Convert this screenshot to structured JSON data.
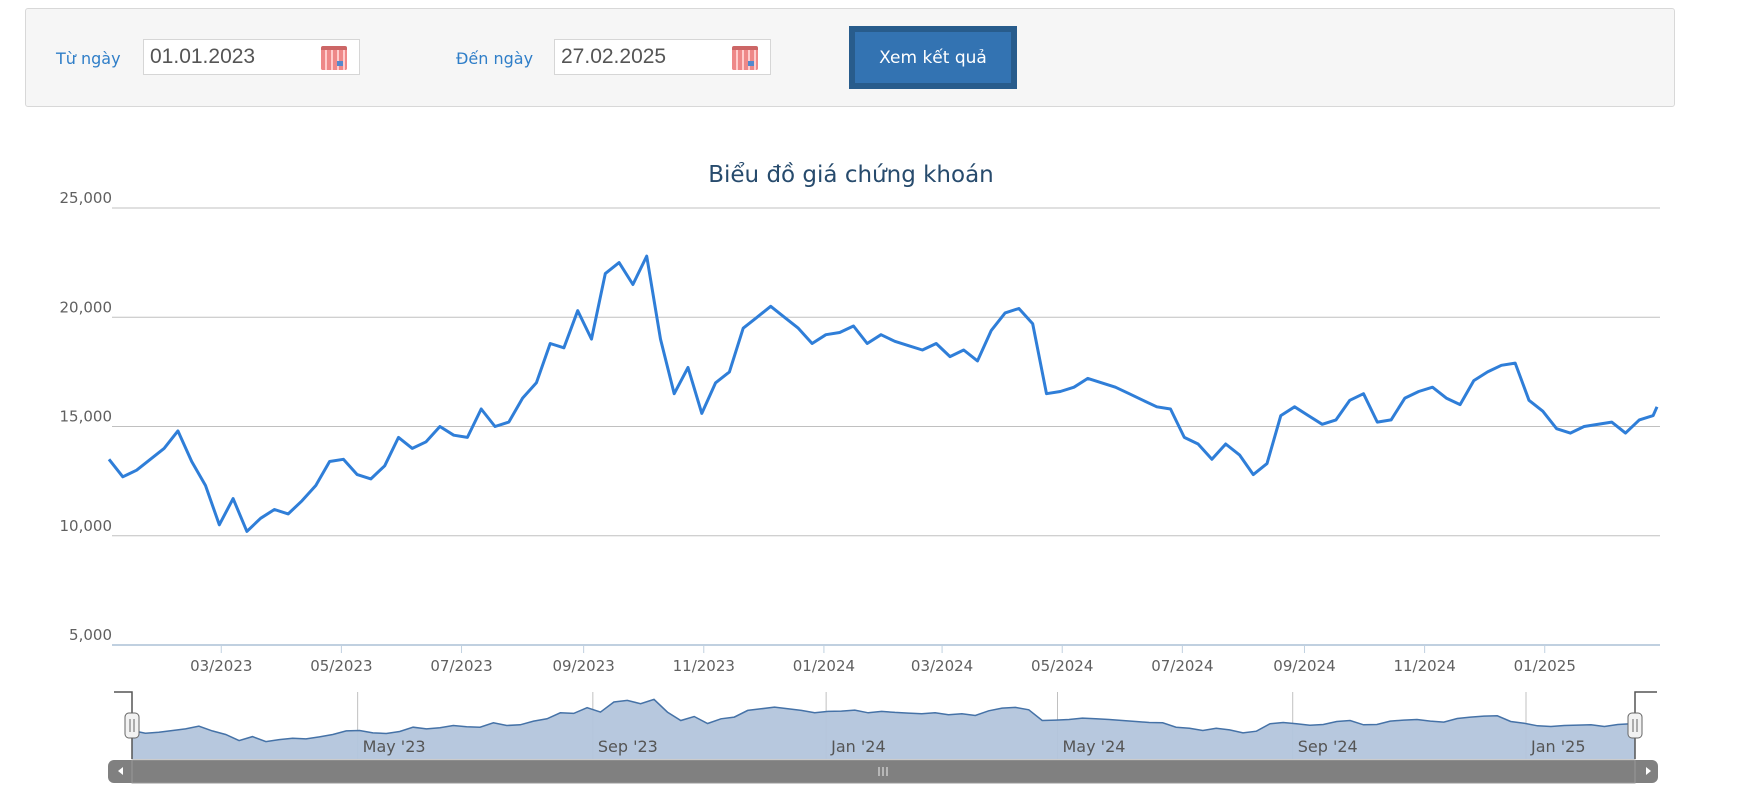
{
  "filter": {
    "from_label": "Từ ngày",
    "from_value": "01.01.2023",
    "to_label": "Đến ngày",
    "to_value": "27.02.2025",
    "submit_label": "Xem kết quả",
    "calendar_icon": "calendar-icon"
  },
  "colors": {
    "line": "#2f7ed8",
    "navigator_fill": "#b3c5dc",
    "navigator_line": "#4572a7",
    "title": "#274b6d",
    "button": "#3373b2"
  },
  "chart_data": {
    "type": "line",
    "title": "Biểu đồ giá chứng khoán",
    "ylim": [
      5000,
      25000
    ],
    "y_ticks": [
      "5,000",
      "10,000",
      "15,000",
      "20,000",
      "25,000"
    ],
    "y_tick_values": [
      5000,
      10000,
      15000,
      20000,
      25000
    ],
    "x_ticks": [
      {
        "date": "2023-03-01",
        "label": "03/2023"
      },
      {
        "date": "2023-05-01",
        "label": "05/2023"
      },
      {
        "date": "2023-07-01",
        "label": "07/2023"
      },
      {
        "date": "2023-09-01",
        "label": "09/2023"
      },
      {
        "date": "2023-11-01",
        "label": "11/2023"
      },
      {
        "date": "2024-01-01",
        "label": "01/2024"
      },
      {
        "date": "2024-03-01",
        "label": "03/2024"
      },
      {
        "date": "2024-05-01",
        "label": "05/2024"
      },
      {
        "date": "2024-07-01",
        "label": "07/2024"
      },
      {
        "date": "2024-09-01",
        "label": "09/2024"
      },
      {
        "date": "2024-11-01",
        "label": "11/2024"
      },
      {
        "date": "2025-01-01",
        "label": "01/2025"
      }
    ],
    "navigator_ticks": [
      {
        "date": "2023-05-01",
        "label": "May '23"
      },
      {
        "date": "2023-09-01",
        "label": "Sep '23"
      },
      {
        "date": "2024-01-01",
        "label": "Jan '24"
      },
      {
        "date": "2024-05-01",
        "label": "May '24"
      },
      {
        "date": "2024-09-01",
        "label": "Sep '24"
      },
      {
        "date": "2025-01-01",
        "label": "Jan '25"
      }
    ],
    "grid": true,
    "legend": "none",
    "series": [
      {
        "points": [
          [
            "2023-01-03",
            13500
          ],
          [
            "2023-01-10",
            12700
          ],
          [
            "2023-01-17",
            13000
          ],
          [
            "2023-01-31",
            14000
          ],
          [
            "2023-02-07",
            14800
          ],
          [
            "2023-02-14",
            13400
          ],
          [
            "2023-02-21",
            12300
          ],
          [
            "2023-02-28",
            10500
          ],
          [
            "2023-03-07",
            11700
          ],
          [
            "2023-03-14",
            10200
          ],
          [
            "2023-03-21",
            10800
          ],
          [
            "2023-03-28",
            11200
          ],
          [
            "2023-04-04",
            11000
          ],
          [
            "2023-04-11",
            11600
          ],
          [
            "2023-04-18",
            12300
          ],
          [
            "2023-04-25",
            13400
          ],
          [
            "2023-05-02",
            13500
          ],
          [
            "2023-05-09",
            12800
          ],
          [
            "2023-05-16",
            12600
          ],
          [
            "2023-05-23",
            13200
          ],
          [
            "2023-05-30",
            14500
          ],
          [
            "2023-06-06",
            14000
          ],
          [
            "2023-06-13",
            14300
          ],
          [
            "2023-06-20",
            15000
          ],
          [
            "2023-06-27",
            14600
          ],
          [
            "2023-07-04",
            14500
          ],
          [
            "2023-07-11",
            15800
          ],
          [
            "2023-07-18",
            15000
          ],
          [
            "2023-07-25",
            15200
          ],
          [
            "2023-08-01",
            16300
          ],
          [
            "2023-08-08",
            17000
          ],
          [
            "2023-08-15",
            18800
          ],
          [
            "2023-08-22",
            18600
          ],
          [
            "2023-08-29",
            20300
          ],
          [
            "2023-09-05",
            19000
          ],
          [
            "2023-09-12",
            22000
          ],
          [
            "2023-09-19",
            22500
          ],
          [
            "2023-09-26",
            21500
          ],
          [
            "2023-10-03",
            22800
          ],
          [
            "2023-10-10",
            19000
          ],
          [
            "2023-10-17",
            16500
          ],
          [
            "2023-10-24",
            17700
          ],
          [
            "2023-10-31",
            15600
          ],
          [
            "2023-11-07",
            17000
          ],
          [
            "2023-11-14",
            17500
          ],
          [
            "2023-11-21",
            19500
          ],
          [
            "2023-11-28",
            20000
          ],
          [
            "2023-12-05",
            20500
          ],
          [
            "2023-12-12",
            20000
          ],
          [
            "2023-12-19",
            19500
          ],
          [
            "2023-12-26",
            18800
          ],
          [
            "2024-01-02",
            19200
          ],
          [
            "2024-01-09",
            19300
          ],
          [
            "2024-01-16",
            19600
          ],
          [
            "2024-01-23",
            18800
          ],
          [
            "2024-01-30",
            19200
          ],
          [
            "2024-02-06",
            18900
          ],
          [
            "2024-02-13",
            18700
          ],
          [
            "2024-02-20",
            18500
          ],
          [
            "2024-02-27",
            18800
          ],
          [
            "2024-03-05",
            18200
          ],
          [
            "2024-03-12",
            18500
          ],
          [
            "2024-03-19",
            18000
          ],
          [
            "2024-03-26",
            19400
          ],
          [
            "2024-04-02",
            20200
          ],
          [
            "2024-04-09",
            20400
          ],
          [
            "2024-04-16",
            19700
          ],
          [
            "2024-04-23",
            16500
          ],
          [
            "2024-04-30",
            16600
          ],
          [
            "2024-05-07",
            16800
          ],
          [
            "2024-05-14",
            17200
          ],
          [
            "2024-05-21",
            17000
          ],
          [
            "2024-05-28",
            16800
          ],
          [
            "2024-06-04",
            16500
          ],
          [
            "2024-06-11",
            16200
          ],
          [
            "2024-06-18",
            15900
          ],
          [
            "2024-06-25",
            15800
          ],
          [
            "2024-07-02",
            14500
          ],
          [
            "2024-07-09",
            14200
          ],
          [
            "2024-07-16",
            13500
          ],
          [
            "2024-07-23",
            14200
          ],
          [
            "2024-07-30",
            13700
          ],
          [
            "2024-08-06",
            12800
          ],
          [
            "2024-08-13",
            13300
          ],
          [
            "2024-08-20",
            15500
          ],
          [
            "2024-08-27",
            15900
          ],
          [
            "2024-09-03",
            15500
          ],
          [
            "2024-09-10",
            15100
          ],
          [
            "2024-09-17",
            15300
          ],
          [
            "2024-09-24",
            16200
          ],
          [
            "2024-10-01",
            16500
          ],
          [
            "2024-10-08",
            15200
          ],
          [
            "2024-10-15",
            15300
          ],
          [
            "2024-10-22",
            16300
          ],
          [
            "2024-10-29",
            16600
          ],
          [
            "2024-11-05",
            16800
          ],
          [
            "2024-11-12",
            16300
          ],
          [
            "2024-11-19",
            16000
          ],
          [
            "2024-11-26",
            17100
          ],
          [
            "2024-12-03",
            17500
          ],
          [
            "2024-12-10",
            17800
          ],
          [
            "2024-12-17",
            17900
          ],
          [
            "2024-12-24",
            16200
          ],
          [
            "2024-12-31",
            15700
          ],
          [
            "2025-01-07",
            14900
          ],
          [
            "2025-01-14",
            14700
          ],
          [
            "2025-01-21",
            15000
          ],
          [
            "2025-02-04",
            15200
          ],
          [
            "2025-02-11",
            14700
          ],
          [
            "2025-02-18",
            15300
          ],
          [
            "2025-02-25",
            15500
          ],
          [
            "2025-02-27",
            15900
          ]
        ]
      }
    ]
  }
}
